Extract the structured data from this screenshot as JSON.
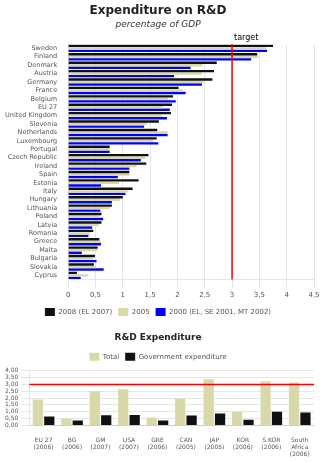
{
  "chart_data": [
    {
      "type": "bar",
      "orientation": "horizontal",
      "title": "Expenditure on R&D",
      "subtitle": "percentage of GDP",
      "categories": [
        "Sweden",
        "Finland",
        "Denmark",
        "Austria",
        "Germany",
        "France",
        "Belgium",
        "EU 27",
        "United Kingdom",
        "Slovenia",
        "Netherlands",
        "Luxembourg",
        "Portugal",
        "Czech Republic",
        "Ireland",
        "Spain",
        "Estonia",
        "Italy",
        "Hungary",
        "Lithuania",
        "Poland",
        "Latvia",
        "Romania",
        "Greece",
        "Malta",
        "Bulgaria",
        "Slovakia",
        "Cyprus"
      ],
      "series": [
        {
          "name": "2008 (EL 2007)",
          "color": "#111111",
          "values": [
            3.75,
            3.46,
            2.72,
            2.67,
            2.64,
            2.02,
            1.92,
            1.9,
            1.88,
            1.66,
            1.63,
            1.62,
            0.76,
            1.47,
            1.43,
            1.12,
            1.29,
            1.18,
            1.0,
            0.8,
            0.61,
            0.61,
            0.46,
            0.57,
            0.54,
            0.49,
            0.47,
            0.16
          ]
        },
        {
          "name": "2005",
          "color": "#d8d8a8",
          "values": [
            3.62,
            3.48,
            2.46,
            2.45,
            2.48,
            2.1,
            1.83,
            1.74,
            1.73,
            1.44,
            1.82,
            1.56,
            0.76,
            1.41,
            1.25,
            1.12,
            0.93,
            1.09,
            0.94,
            0.76,
            0.57,
            0.56,
            0.41,
            0.6,
            0.54,
            0.46,
            0.51,
            0.37
          ]
        },
        {
          "name": "2000 (EL, SE 2001, MT 2002)",
          "color": "blue",
          "values": [
            3.64,
            3.35,
            2.24,
            1.94,
            2.45,
            2.15,
            1.97,
            1.86,
            1.81,
            1.39,
            1.82,
            1.65,
            0.76,
            1.33,
            1.12,
            0.91,
            0.6,
            1.05,
            0.8,
            0.59,
            0.64,
            0.44,
            0.37,
            0.6,
            0.25,
            0.52,
            0.65,
            0.23
          ]
        }
      ],
      "xlim": [
        0,
        4.5
      ],
      "xticks": [
        0,
        {
          "value": 0.5,
          "label": "0,5"
        },
        1,
        {
          "value": 1.5,
          "label": "1,5"
        },
        2,
        {
          "value": 2.5,
          "label": "2,5"
        },
        3,
        {
          "value": 3.5,
          "label": "3,5"
        },
        4,
        {
          "value": 4.5,
          "label": "4,5"
        }
      ],
      "grid": true,
      "legend": "bottom",
      "annotations": [
        {
          "type": "vline",
          "x": 3.0,
          "text": "target",
          "color": "red"
        }
      ]
    },
    {
      "type": "bar",
      "title": "R&D Expenditure",
      "categories": [
        "EU 27\n(2006)",
        "BG\n(2006)",
        "GM\n(2007)",
        "USA\n(2007)",
        "GRE\n(2006)",
        "CAN\n(2005)",
        "JAP\n(2005)",
        "KOR\n(2006)",
        "S.KOR\n(2006)",
        "South\nAfrica\n(2006)"
      ],
      "series": [
        {
          "name": "Total",
          "color": "#d8d8a8",
          "values": [
            1.9,
            0.49,
            2.51,
            2.64,
            0.57,
            1.97,
            3.39,
            1.0,
            3.22,
            3.14
          ]
        },
        {
          "name": "Government expenditure",
          "color": "#111111",
          "values": [
            0.65,
            0.35,
            0.75,
            0.76,
            0.36,
            0.73,
            0.87,
            0.42,
            1.0,
            0.95
          ]
        }
      ],
      "ylim": [
        0,
        4.0
      ],
      "yticks": [
        {
          "value": 0,
          "label": "0,00"
        },
        {
          "value": 0.5,
          "label": "0,50"
        },
        {
          "value": 1.0,
          "label": "1,00"
        },
        {
          "value": 1.5,
          "label": "1,50"
        },
        {
          "value": 2.0,
          "label": "2,00"
        },
        {
          "value": 2.5,
          "label": "2,50"
        },
        {
          "value": 3.0,
          "label": "3,00"
        },
        {
          "value": 3.5,
          "label": "3,50"
        },
        {
          "value": 4.0,
          "label": "4,00"
        }
      ],
      "grid": true,
      "legend": "top",
      "annotations": [
        {
          "type": "hline",
          "y": 3.0,
          "color": "red"
        }
      ]
    }
  ]
}
